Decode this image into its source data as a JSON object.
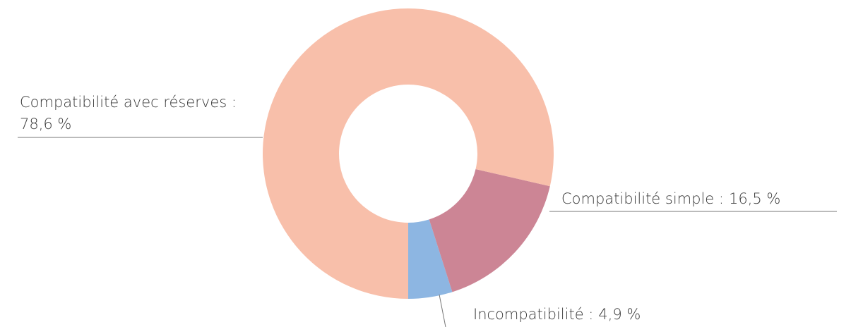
{
  "chart_data": {
    "type": "donut",
    "categories": [
      "Incompatibilité :",
      "Compatibilité simple :",
      "Compatibilité avec réserves :"
    ],
    "values": [
      4.9,
      16.5,
      78.6
    ],
    "value_labels": [
      "4,9 %",
      "16,5 %",
      "78,6 %"
    ],
    "colors": [
      "#8db6e2",
      "#cc8595",
      "#f8bfaa"
    ]
  }
}
